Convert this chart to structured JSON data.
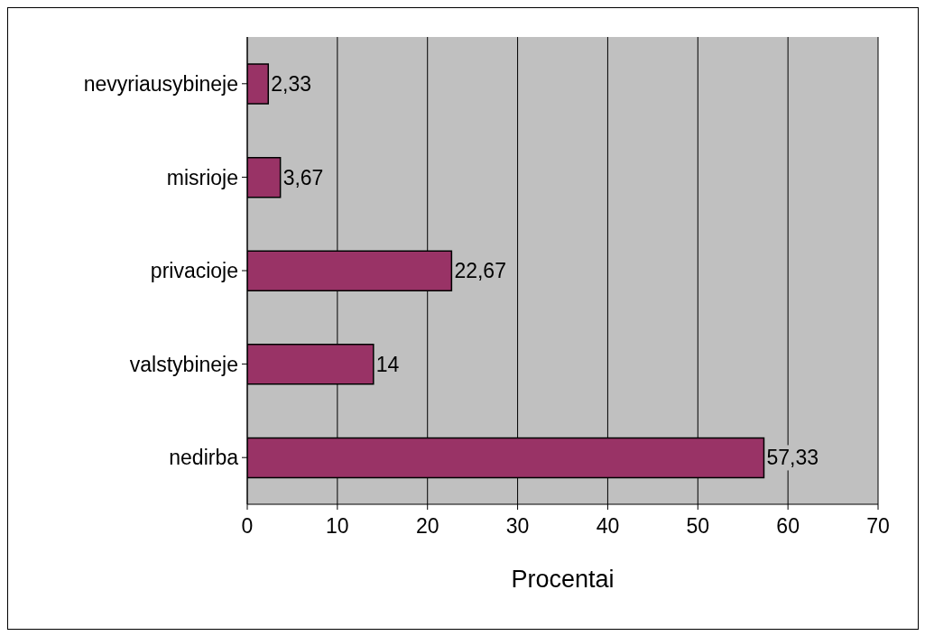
{
  "chart_data": {
    "type": "bar",
    "orientation": "horizontal",
    "xlabel": "Procentai",
    "categories": [
      "nevyriausybineje",
      "misrioje",
      "privacioje",
      "valstybineje",
      "nedirba"
    ],
    "values": [
      2.33,
      3.67,
      22.67,
      14,
      57.33
    ],
    "value_labels": [
      "2,33",
      "3,67",
      "22,67",
      "14",
      "57,33"
    ],
    "color": "#993366",
    "xlim": [
      0,
      70
    ],
    "xticks": [
      0,
      10,
      20,
      30,
      40,
      50,
      60,
      70
    ],
    "grid": "x"
  }
}
